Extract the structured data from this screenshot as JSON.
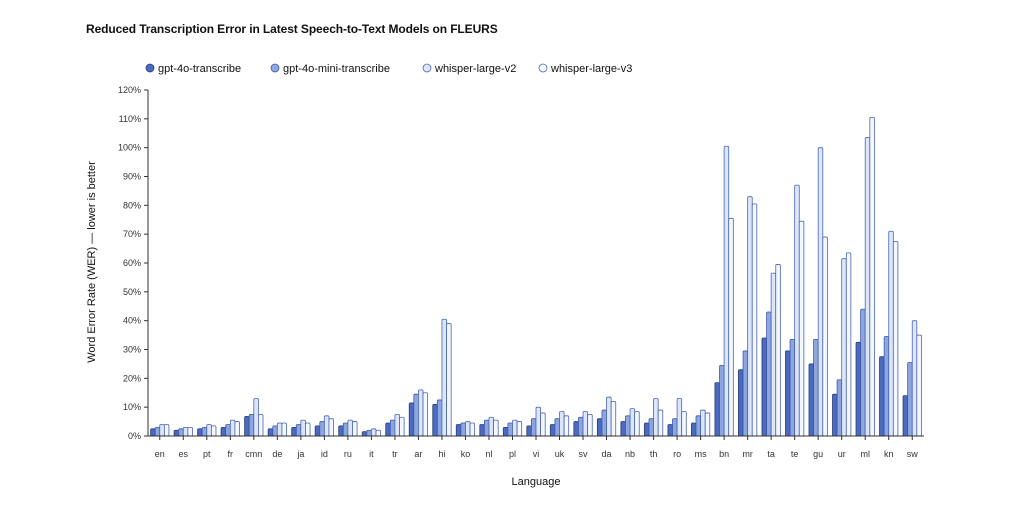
{
  "chart_data": {
    "type": "bar",
    "title": "Reduced Transcription Error in Latest Speech-to-Text Models on FLEURS",
    "xlabel": "Language",
    "ylabel": "Word Error Rate (WER) — lower is better",
    "ylim": [
      0,
      120
    ],
    "yticks": [
      "0%",
      "10%",
      "20%",
      "30%",
      "40%",
      "50%",
      "60%",
      "70%",
      "80%",
      "90%",
      "100%",
      "110%",
      "120%"
    ],
    "grid": false,
    "legend_position": "top-left",
    "categories": [
      "en",
      "es",
      "pt",
      "fr",
      "cmn",
      "de",
      "ja",
      "id",
      "ru",
      "it",
      "tr",
      "ar",
      "hi",
      "ko",
      "nl",
      "pl",
      "vi",
      "uk",
      "sv",
      "da",
      "nb",
      "th",
      "ro",
      "ms",
      "bn",
      "mr",
      "ta",
      "te",
      "gu",
      "ur",
      "ml",
      "kn",
      "sw"
    ],
    "series": [
      {
        "name": "gpt-4o-transcribe",
        "color": "#4a6bbf",
        "stroke": "#2b3f7a",
        "values": [
          2.5,
          2.0,
          2.5,
          3.0,
          6.8,
          2.5,
          3.0,
          3.5,
          3.5,
          1.5,
          4.5,
          11.5,
          11.0,
          4.0,
          4.0,
          3.0,
          3.5,
          4.0,
          5.0,
          6.0,
          5.0,
          4.5,
          4.0,
          4.5,
          18.5,
          23.0,
          34.0,
          29.5,
          25.0,
          14.5,
          32.5,
          27.5,
          14.0
        ]
      },
      {
        "name": "gpt-4o-mini-transcribe",
        "color": "#8ea6e0",
        "stroke": "#3f5aa8",
        "values": [
          3.0,
          2.5,
          3.0,
          4.0,
          7.5,
          3.5,
          4.0,
          5.0,
          4.5,
          2.0,
          5.5,
          14.5,
          12.5,
          4.5,
          5.5,
          4.5,
          6.0,
          6.0,
          6.5,
          9.0,
          7.0,
          6.0,
          6.0,
          7.0,
          24.5,
          29.5,
          43.0,
          33.5,
          33.5,
          19.5,
          44.0,
          34.5,
          25.5
        ]
      },
      {
        "name": "whisper-large-v2",
        "color": "#dde6f8",
        "stroke": "#4a66b5",
        "values": [
          4.0,
          3.0,
          4.0,
          5.5,
          13.0,
          4.5,
          5.5,
          7.0,
          5.5,
          2.5,
          7.5,
          16.0,
          40.5,
          5.0,
          6.5,
          5.5,
          10.0,
          8.5,
          8.5,
          13.5,
          9.5,
          13.0,
          13.0,
          9.0,
          100.5,
          83.0,
          56.5,
          87.0,
          100.0,
          61.5,
          103.5,
          71.0,
          40.0
        ]
      },
      {
        "name": "whisper-large-v3",
        "color": "#f4f7fd",
        "stroke": "#4a66b5",
        "values": [
          4.0,
          3.0,
          3.5,
          5.0,
          7.5,
          4.5,
          4.5,
          6.0,
          5.0,
          2.0,
          6.5,
          15.0,
          39.0,
          4.5,
          5.5,
          5.0,
          8.0,
          7.0,
          7.5,
          12.0,
          8.5,
          9.0,
          8.5,
          8.0,
          75.5,
          80.5,
          59.5,
          74.5,
          69.0,
          63.5,
          110.5,
          67.5,
          35.0
        ]
      }
    ]
  }
}
